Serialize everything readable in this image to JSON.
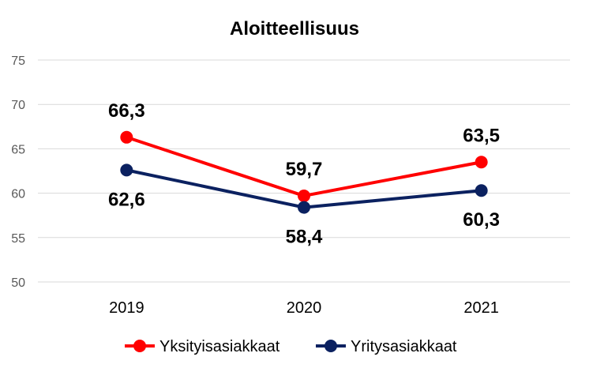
{
  "chart_data": {
    "type": "line",
    "title": "Aloitteellisuus",
    "xlabel": "",
    "ylabel": "",
    "categories": [
      "2019",
      "2020",
      "2021"
    ],
    "series": [
      {
        "name": "Yksityisasiakkaat",
        "values": [
          66.3,
          59.7,
          63.5
        ],
        "labels": [
          "66,3",
          "59,7",
          "63,5"
        ],
        "color": "#ff0000"
      },
      {
        "name": "Yritysasiakkaat",
        "values": [
          62.6,
          58.4,
          60.3
        ],
        "labels": [
          "62,6",
          "58,4",
          "60,3"
        ],
        "color": "#0b2160"
      }
    ],
    "ylim": [
      50,
      75
    ],
    "yticks": [
      "50",
      "55",
      "60",
      "65",
      "70",
      "75"
    ],
    "grid": true,
    "legend": "bottom"
  }
}
